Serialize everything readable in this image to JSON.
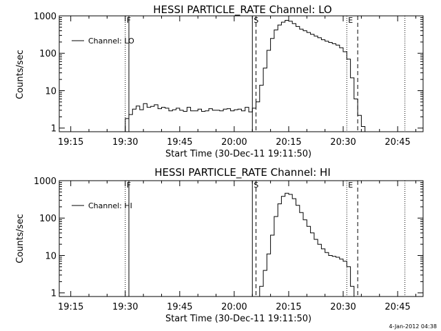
{
  "footer_timestamp": "4-Jan-2012 04:38",
  "chart_data": [
    {
      "type": "line",
      "title": "HESSI PARTICLE_RATE Channel: LO",
      "xlabel": "Start Time (30-Dec-11 19:11:50)",
      "ylabel": "Counts/sec",
      "yscale": "log",
      "xlim": [
        "19:11:50",
        "20:52:00"
      ],
      "ylim": [
        0.8,
        1000
      ],
      "x_ticks": [
        "19:15",
        "19:30",
        "19:45",
        "20:00",
        "20:15",
        "20:30",
        "20:45"
      ],
      "y_ticks": [
        "1",
        "10",
        "100",
        "1000"
      ],
      "legend": {
        "position": "top-left",
        "entries": [
          "Channel: LO"
        ]
      },
      "markers": [
        {
          "label": "F",
          "time": "19:30",
          "style": "dotted"
        },
        {
          "label": "",
          "time": "19:31",
          "style": "solid"
        },
        {
          "label": "S",
          "time": "20:05",
          "style": "solid"
        },
        {
          "label": "",
          "time": "20:06",
          "style": "dashed"
        },
        {
          "label": "E",
          "time": "20:31",
          "style": "dotted"
        },
        {
          "label": "",
          "time": "20:34",
          "style": "dashed"
        },
        {
          "label": "",
          "time": "20:47",
          "style": "dotted"
        }
      ],
      "series": [
        {
          "name": "Channel: LO",
          "x": [
            "19:29",
            "19:30",
            "19:31",
            "19:32",
            "19:33",
            "19:34",
            "19:35",
            "19:36",
            "19:37",
            "19:38",
            "19:39",
            "19:40",
            "19:41",
            "19:42",
            "19:43",
            "19:44",
            "19:45",
            "19:46",
            "19:47",
            "19:48",
            "19:49",
            "19:50",
            "19:51",
            "19:52",
            "19:53",
            "19:54",
            "19:55",
            "19:56",
            "19:57",
            "19:58",
            "19:59",
            "20:00",
            "20:01",
            "20:02",
            "20:03",
            "20:04",
            "20:05",
            "20:06",
            "20:07",
            "20:08",
            "20:09",
            "20:10",
            "20:11",
            "20:12",
            "20:13",
            "20:14",
            "20:15",
            "20:16",
            "20:17",
            "20:18",
            "20:19",
            "20:20",
            "20:21",
            "20:22",
            "20:23",
            "20:24",
            "20:25",
            "20:26",
            "20:27",
            "20:28",
            "20:29",
            "20:30",
            "20:31",
            "20:32",
            "20:33",
            "20:34",
            "20:35",
            "20:36",
            "20:37"
          ],
          "values": [
            0.8,
            1.8,
            2.3,
            3.2,
            3.9,
            3.1,
            4.5,
            3.6,
            3.8,
            4.2,
            3.3,
            3.6,
            3.4,
            2.9,
            3.1,
            3.4,
            3.0,
            2.8,
            3.6,
            2.9,
            2.9,
            3.2,
            2.8,
            2.9,
            3.3,
            3.0,
            3.0,
            2.9,
            3.2,
            3.3,
            2.9,
            3.1,
            3.2,
            2.9,
            3.6,
            2.7,
            3.4,
            5,
            14,
            40,
            120,
            250,
            420,
            570,
            680,
            760,
            720,
            620,
            520,
            440,
            400,
            360,
            320,
            290,
            260,
            230,
            210,
            195,
            180,
            165,
            140,
            110,
            70,
            22,
            6,
            2.2,
            1.1,
            0.8,
            0.8
          ]
        }
      ]
    },
    {
      "type": "line",
      "title": "HESSI PARTICLE_RATE Channel: HI",
      "xlabel": "Start Time (30-Dec-11 19:11:50)",
      "ylabel": "Counts/sec",
      "yscale": "log",
      "xlim": [
        "19:11:50",
        "20:52:00"
      ],
      "ylim": [
        0.8,
        1000
      ],
      "x_ticks": [
        "19:15",
        "19:30",
        "19:45",
        "20:00",
        "20:15",
        "20:30",
        "20:45"
      ],
      "y_ticks": [
        "1",
        "10",
        "100",
        "1000"
      ],
      "legend": {
        "position": "top-left",
        "entries": [
          "Channel: HI"
        ]
      },
      "markers": [
        {
          "label": "F",
          "time": "19:30",
          "style": "dotted"
        },
        {
          "label": "",
          "time": "19:31",
          "style": "solid"
        },
        {
          "label": "S",
          "time": "20:05",
          "style": "solid"
        },
        {
          "label": "",
          "time": "20:06",
          "style": "dashed"
        },
        {
          "label": "E",
          "time": "20:31",
          "style": "dotted"
        },
        {
          "label": "",
          "time": "20:34",
          "style": "dashed"
        },
        {
          "label": "",
          "time": "20:47",
          "style": "dotted"
        }
      ],
      "series": [
        {
          "name": "Channel: HI",
          "x": [
            "20:06",
            "20:07",
            "20:08",
            "20:09",
            "20:10",
            "20:11",
            "20:12",
            "20:13",
            "20:14",
            "20:15",
            "20:16",
            "20:17",
            "20:18",
            "20:19",
            "20:20",
            "20:21",
            "20:22",
            "20:23",
            "20:24",
            "20:25",
            "20:26",
            "20:27",
            "20:28",
            "20:29",
            "20:30",
            "20:31",
            "20:32",
            "20:33"
          ],
          "values": [
            0.8,
            1.5,
            4,
            11,
            35,
            110,
            240,
            380,
            460,
            430,
            330,
            220,
            140,
            90,
            60,
            40,
            27,
            20,
            15,
            12,
            10,
            9.5,
            9,
            8,
            7,
            5,
            1.5,
            0.8
          ]
        }
      ]
    }
  ]
}
